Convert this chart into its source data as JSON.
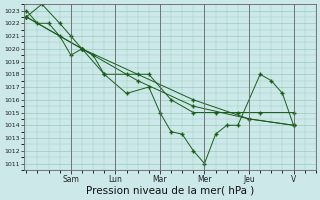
{
  "background_color": "#cce8e8",
  "grid_color": "#99ccbb",
  "line_color": "#1a5c1a",
  "ylim": [
    1010.5,
    1023.5
  ],
  "yticks": [
    1011,
    1012,
    1013,
    1014,
    1015,
    1016,
    1017,
    1018,
    1019,
    1020,
    1021,
    1022,
    1023
  ],
  "xlabel": "Pression niveau de la mer( hPa )",
  "xlabel_fontsize": 7.5,
  "day_labels": [
    "Sam",
    "Lun",
    "Mar",
    "Mer",
    "Jeu",
    "V"
  ],
  "day_positions": [
    2.0,
    4.0,
    6.0,
    8.0,
    10.0,
    12.0
  ],
  "xlim": [
    -0.1,
    13.0
  ],
  "series": [
    [
      0,
      1023.0,
      0.5,
      1022.0,
      1.0,
      1022.0,
      1.5,
      1021.0,
      2.0,
      1019.5,
      2.5,
      1020.0,
      3.0,
      1019.5,
      3.5,
      1018.0,
      4.5,
      1016.5,
      5.5,
      1017.0,
      6.0,
      1015.0,
      6.5,
      1013.5,
      7.0,
      1013.3,
      7.5,
      1012.0,
      8.0,
      1011.0,
      8.5,
      1013.3,
      9.0,
      1014.0,
      9.5,
      1014.0,
      10.5,
      1018.0,
      11.0,
      1017.5,
      11.5,
      1016.5,
      12.0,
      1014.0
    ],
    [
      0,
      1022.5,
      0.7,
      1023.5,
      1.5,
      1022.0,
      2.0,
      1021.0,
      2.5,
      1020.0,
      3.5,
      1018.0,
      4.5,
      1018.0,
      5.5,
      1018.0,
      6.5,
      1016.0,
      7.5,
      1015.0,
      8.5,
      1015.0,
      9.5,
      1015.0,
      10.5,
      1015.0,
      12.0,
      1015.0
    ],
    [
      0,
      1022.5,
      2.5,
      1020.0,
      5.0,
      1018.0,
      7.5,
      1016.0,
      10.0,
      1014.5,
      12.0,
      1014.0
    ],
    [
      0,
      1022.5,
      2.5,
      1020.0,
      5.0,
      1017.5,
      7.5,
      1015.5,
      10.0,
      1014.5,
      12.0,
      1014.0
    ]
  ]
}
